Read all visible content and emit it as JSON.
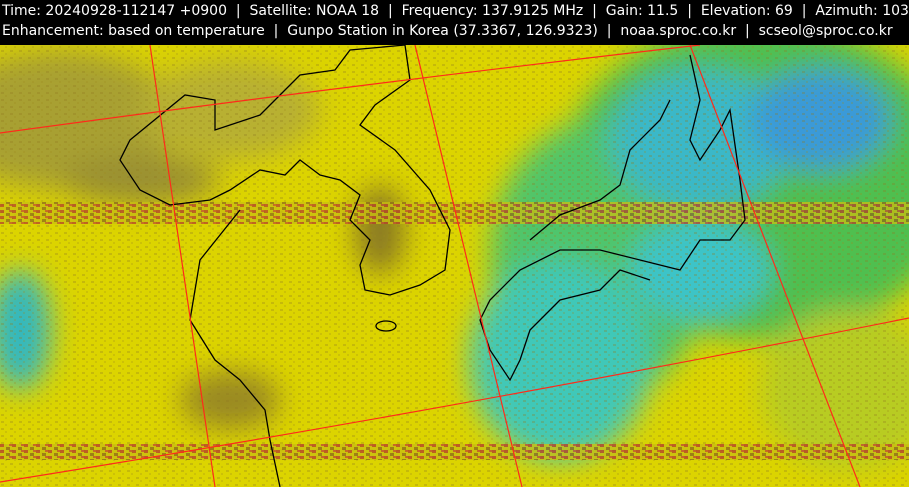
{
  "header": {
    "lines": [
      "Time: 20240928-112147 +0900  |  Satellite: NOAA 18  |  Frequency: 137.9125 MHz  |  Gain: 11.5  |  Elevation: 69  |  Azimuth: 103",
      "Enhancement: based on temperature  |  Gunpo Station in Korea (37.3367, 126.9323)  |  noaa.sproc.co.kr  |  scseol@sproc.co.kr"
    ]
  }
}
